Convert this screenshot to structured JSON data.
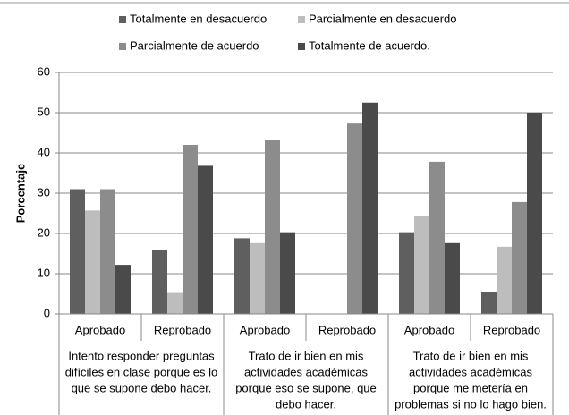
{
  "chart_data": {
    "type": "bar",
    "y_label": "Porcentaje",
    "categories": [
      "Aprobado",
      "Reprobado",
      "Aprobado",
      "Reprobado",
      "Aprobado",
      "Reprobado"
    ],
    "groups": [
      [
        "Intento responder preguntas",
        "difíciles en clase porque es lo",
        "que se supone debo hacer."
      ],
      [
        "Trato de ir bien en mis",
        "actividades académicas",
        "porque eso se supone, que",
        "debo hacer."
      ],
      [
        "Trato de ir bien en mis",
        "actividades académicas",
        "porque me metería en",
        "problemas si no lo hago bien."
      ]
    ],
    "series": [
      {
        "name": "Totalmente en desacuerdo",
        "color": "#5f5f5f",
        "values": [
          31,
          15.8,
          18.8,
          0,
          20.3,
          5.5
        ]
      },
      {
        "name": "Parcialmente en desacuerdo",
        "color": "#bdbdbd",
        "values": [
          25.7,
          5.2,
          17.6,
          0,
          24.3,
          16.7
        ]
      },
      {
        "name": "Parcialmente de acuerdo",
        "color": "#8c8c8c",
        "values": [
          31,
          42,
          43.2,
          47.3,
          37.8,
          27.8
        ]
      },
      {
        "name": "Totalmente de acuerdo.",
        "color": "#4a4a4a",
        "values": [
          12.2,
          36.8,
          20.3,
          52.5,
          17.6,
          50
        ]
      }
    ],
    "ylim": [
      0,
      60
    ],
    "yticks": [
      0,
      10,
      20,
      30,
      40,
      50,
      60
    ],
    "grid": true,
    "legend": "top"
  }
}
